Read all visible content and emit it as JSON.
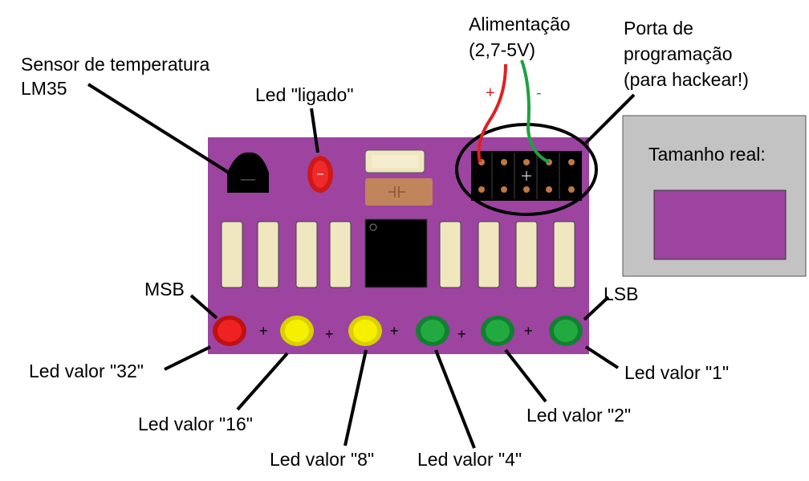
{
  "labels": {
    "sensor_line1": "Sensor de temperatura",
    "sensor_line2": "LM35",
    "led_ligado": "Led \"ligado\"",
    "alimentacao_line1": "Alimentação",
    "alimentacao_line2": "(2,7-5V)",
    "porta_line1": "Porta de",
    "porta_line2": "programação",
    "porta_line3": "(para hackear!)",
    "tamanho_real": "Tamanho real:",
    "msb": "MSB",
    "lsb": "LSB",
    "led32": "Led valor \"32\"",
    "led16": "Led valor \"16\"",
    "led8": "Led valor \"8\"",
    "led4": "Led valor \"4\"",
    "led2": "Led valor \"2\"",
    "led1": "Led valor \"1\"",
    "wire_plus": "+",
    "wire_minus": "-",
    "sum_plus": "+"
  },
  "colors": {
    "board": "#9c44a0",
    "led_red": "#e01818",
    "led_yellow": "#f0e800",
    "led_green": "#1aa03a",
    "wire_red": "#e02020",
    "wire_green": "#20a040",
    "resistor": "#f0e6c0",
    "chip": "#000000",
    "panel": "#c0c0c0"
  },
  "icons": [
    "temperature-sensor-icon",
    "led-icon",
    "capacitor-icon",
    "chip-icon",
    "header-pin-icon"
  ]
}
